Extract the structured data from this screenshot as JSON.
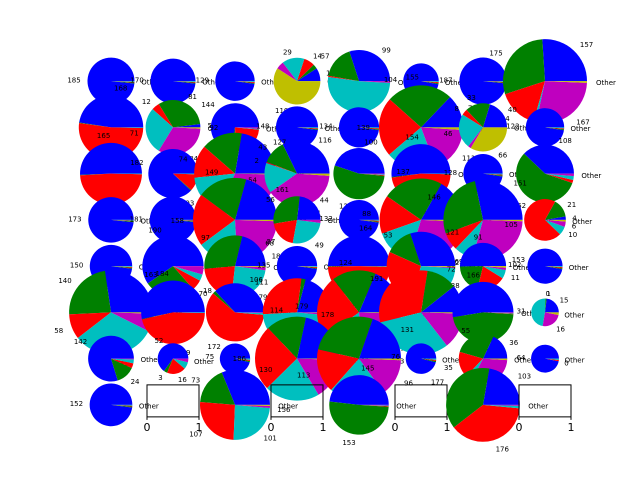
{
  "chart_data": {
    "type": "pie",
    "layout": {
      "rows": 8,
      "cols": 8
    },
    "colors": [
      "#0000ff",
      "#008000",
      "#ff0000",
      "#00bfbf",
      "#bf00bf",
      "#bfbf00"
    ],
    "empty_axis_ticks": [
      "0",
      "1"
    ],
    "panels": [
      {
        "row": 0,
        "col": 0,
        "labels": [
          "185",
          "",
          "",
          "Other"
        ],
        "values": [
          185,
          1,
          1,
          1
        ]
      },
      {
        "row": 0,
        "col": 1,
        "labels": [
          "170",
          "",
          "",
          "Other"
        ],
        "values": [
          170,
          1,
          1,
          1
        ]
      },
      {
        "row": 0,
        "col": 2,
        "labels": [
          "129",
          "",
          "",
          "Other"
        ],
        "values": [
          129,
          1,
          1,
          1
        ]
      },
      {
        "row": 0,
        "col": 3,
        "labels": [
          "17",
          "",
          "14",
          "29",
          "",
          "110",
          "Other"
        ],
        "values": [
          17,
          6,
          14,
          29,
          10,
          110,
          0
        ]
      },
      {
        "row": 0,
        "col": 4,
        "labels": [
          "99",
          "57",
          "",
          "169",
          "Other"
        ],
        "values": [
          99,
          57,
          2,
          169,
          3
        ]
      },
      {
        "row": 0,
        "col": 5,
        "labels": [
          "104",
          "",
          "",
          "Other"
        ],
        "values": [
          104,
          1,
          1,
          1
        ]
      },
      {
        "row": 0,
        "col": 6,
        "labels": [
          "187",
          "",
          "",
          "Other"
        ],
        "values": [
          187,
          1,
          1,
          1
        ]
      },
      {
        "row": 0,
        "col": 7,
        "labels": [
          "157",
          "175",
          "94",
          "",
          "167",
          "Other"
        ],
        "values": [
          157,
          175,
          94,
          6,
          167,
          4
        ]
      },
      {
        "row": 1,
        "col": 0,
        "labels": [
          "168",
          "",
          "183",
          "Other"
        ],
        "values": [
          168,
          1,
          183,
          1
        ]
      },
      {
        "row": 1,
        "col": 1,
        "labels": [
          "5",
          "81",
          "12",
          "71",
          "84",
          "Other"
        ],
        "values": [
          5,
          81,
          12,
          71,
          84,
          2
        ]
      },
      {
        "row": 1,
        "col": 2,
        "labels": [
          "144",
          "6",
          "45",
          "",
          "Other"
        ],
        "values": [
          144,
          6,
          45,
          1,
          2
        ]
      },
      {
        "row": 1,
        "col": 3,
        "labels": [
          "148",
          "",
          "",
          "Other"
        ],
        "values": [
          148,
          1,
          1,
          1
        ]
      },
      {
        "row": 1,
        "col": 4,
        "labels": [
          "134",
          "",
          "",
          "Other"
        ],
        "values": [
          134,
          1,
          1,
          1
        ]
      },
      {
        "row": 1,
        "col": 5,
        "labels": [
          "78",
          "155",
          "139",
          "118",
          "111",
          "Other"
        ],
        "values": [
          78,
          155,
          139,
          118,
          111,
          6
        ]
      },
      {
        "row": 1,
        "col": 6,
        "labels": [
          "40",
          "33",
          "8",
          "46",
          "",
          "66",
          "Other"
        ],
        "values": [
          40,
          33,
          8,
          46,
          4,
          66,
          0
        ]
      },
      {
        "row": 1,
        "col": 7,
        "labels": [
          "122",
          "",
          "",
          "Other"
        ],
        "values": [
          122,
          1,
          1,
          1
        ]
      },
      {
        "row": 2,
        "col": 0,
        "labels": [
          "165",
          "",
          "159",
          "Other"
        ],
        "values": [
          165,
          1,
          159,
          1
        ]
      },
      {
        "row": 2,
        "col": 1,
        "labels": [
          "182",
          "",
          "23",
          "Other"
        ],
        "values": [
          182,
          1,
          23,
          1
        ]
      },
      {
        "row": 2,
        "col": 2,
        "labels": [
          "127",
          "92",
          "74",
          "93",
          "180",
          "Other"
        ],
        "values": [
          127,
          92,
          74,
          93,
          180,
          2
        ]
      },
      {
        "row": 2,
        "col": 3,
        "labels": [
          "116",
          "43",
          "2",
          "54",
          "141",
          "Other"
        ],
        "values": [
          116,
          43,
          2,
          54,
          141,
          4
        ]
      },
      {
        "row": 2,
        "col": 4,
        "labels": [
          "100",
          "120",
          "",
          "",
          "Other"
        ],
        "values": [
          100,
          120,
          1,
          1,
          1
        ]
      },
      {
        "row": 2,
        "col": 5,
        "labels": [
          "154",
          "",
          "141",
          "Other"
        ],
        "values": [
          154,
          1,
          141,
          1
        ]
      },
      {
        "row": 2,
        "col": 6,
        "labels": [
          "128",
          "",
          "",
          "Other"
        ],
        "values": [
          128,
          1,
          1,
          1
        ]
      },
      {
        "row": 2,
        "col": 7,
        "labels": [
          "108",
          "162",
          "",
          "",
          "Other"
        ],
        "values": [
          108,
          162,
          5,
          6,
          4
        ]
      },
      {
        "row": 3,
        "col": 0,
        "labels": [
          "173",
          "",
          "",
          "Other"
        ],
        "values": [
          173,
          1,
          1,
          1
        ]
      },
      {
        "row": 3,
        "col": 1,
        "labels": [
          "181",
          "",
          "",
          "Other"
        ],
        "values": [
          181,
          1,
          1,
          1
        ]
      },
      {
        "row": 3,
        "col": 2,
        "labels": [
          "161",
          "149",
          "158",
          "123",
          "183",
          "Other"
        ],
        "values": [
          161,
          149,
          158,
          123,
          183,
          4
        ]
      },
      {
        "row": 3,
        "col": 3,
        "labels": [
          "44",
          "56",
          "37",
          "49",
          "",
          "Other"
        ],
        "values": [
          44,
          56,
          37,
          49,
          4,
          0
        ]
      },
      {
        "row": 3,
        "col": 4,
        "labels": [
          "132",
          "",
          "",
          "Other"
        ],
        "values": [
          132,
          1,
          1,
          1
        ]
      },
      {
        "row": 3,
        "col": 5,
        "labels": [
          "98",
          "137",
          "88",
          "87",
          "169",
          "Other"
        ],
        "values": [
          98,
          137,
          88,
          87,
          169,
          4
        ]
      },
      {
        "row": 3,
        "col": 6,
        "labels": [
          "151",
          "146",
          "39",
          "42",
          "153",
          "Other"
        ],
        "values": [
          151,
          146,
          39,
          42,
          153,
          3
        ]
      },
      {
        "row": 3,
        "col": 7,
        "labels": [
          "4",
          "21",
          "105",
          "10",
          "6",
          "Other"
        ],
        "values": [
          4,
          21,
          105,
          10,
          6,
          2
        ]
      },
      {
        "row": 4,
        "col": 0,
        "labels": [
          "150",
          "",
          "",
          "Other"
        ],
        "values": [
          150,
          1,
          1,
          1
        ]
      },
      {
        "row": 4,
        "col": 1,
        "labels": [
          "190",
          "86",
          "18",
          "11",
          "14",
          "Other"
        ],
        "values": [
          190,
          86,
          18,
          11,
          14,
          0
        ]
      },
      {
        "row": 4,
        "col": 2,
        "labels": [
          "68",
          "97",
          "70",
          "79",
          "",
          "Other"
        ],
        "values": [
          68,
          97,
          70,
          79,
          5,
          2
        ]
      },
      {
        "row": 4,
        "col": 3,
        "labels": [
          "135",
          "",
          "",
          "Other"
        ],
        "values": [
          135,
          1,
          1,
          1
        ]
      },
      {
        "row": 4,
        "col": 4,
        "labels": [
          "164",
          "",
          "162",
          "Other"
        ],
        "values": [
          164,
          1,
          162,
          1
        ]
      },
      {
        "row": 4,
        "col": 5,
        "labels": [
          "121",
          "53",
          "109",
          "115",
          "",
          "Other"
        ],
        "values": [
          121,
          53,
          109,
          115,
          2,
          2
        ]
      },
      {
        "row": 4,
        "col": 6,
        "labels": [
          "91",
          "38",
          "36",
          "11",
          "",
          "Other"
        ],
        "values": [
          91,
          38,
          36,
          11,
          3,
          2
        ]
      },
      {
        "row": 4,
        "col": 7,
        "labels": [
          "102",
          "",
          "",
          "Other"
        ],
        "values": [
          102,
          1,
          1,
          1
        ]
      },
      {
        "row": 5,
        "col": 0,
        "labels": [
          "163",
          "140",
          "58",
          "192",
          "41",
          "Other"
        ],
        "values": [
          163,
          140,
          58,
          192,
          41,
          3
        ]
      },
      {
        "row": 5,
        "col": 1,
        "labels": [
          "184",
          "",
          "159",
          "Other"
        ],
        "values": [
          184,
          1,
          159,
          1
        ]
      },
      {
        "row": 5,
        "col": 2,
        "labels": [
          "106",
          "",
          "172",
          "",
          "Other"
        ],
        "values": [
          106,
          5,
          172,
          3,
          1
        ]
      },
      {
        "row": 5,
        "col": 3,
        "labels": [
          "83",
          "",
          "111",
          "189",
          "",
          "Other"
        ],
        "values": [
          83,
          8,
          111,
          189,
          5,
          1
        ]
      },
      {
        "row": 5,
        "col": 4,
        "labels": [
          "136",
          "124",
          "179",
          "117",
          "171",
          "Other"
        ],
        "values": [
          136,
          124,
          179,
          117,
          171,
          4
        ]
      },
      {
        "row": 5,
        "col": 5,
        "labels": [
          "65",
          "72",
          "191",
          "193",
          "85",
          "Other"
        ],
        "values": [
          65,
          72,
          191,
          193,
          85,
          3
        ]
      },
      {
        "row": 5,
        "col": 6,
        "labels": [
          "166",
          "147",
          "",
          "",
          "Other"
        ],
        "values": [
          166,
          147,
          1,
          1,
          1
        ]
      },
      {
        "row": 5,
        "col": 7,
        "labels": [
          "15",
          "1",
          "0",
          "31",
          "16",
          "Other"
        ],
        "values": [
          15,
          1,
          0,
          31,
          16,
          2
        ]
      },
      {
        "row": 6,
        "col": 0,
        "labels": [
          "142",
          "24",
          "",
          "",
          "Other"
        ],
        "values": [
          142,
          24,
          6,
          5,
          1
        ]
      },
      {
        "row": 6,
        "col": 1,
        "labels": [
          "52",
          "3",
          "16",
          "",
          "Other"
        ],
        "values": [
          52,
          3,
          16,
          6,
          3
        ]
      },
      {
        "row": 6,
        "col": 2,
        "labels": [
          "75",
          "",
          "",
          "Other"
        ],
        "values": [
          75,
          1,
          1,
          1
        ]
      },
      {
        "row": 6,
        "col": 3,
        "labels": [
          "159",
          "114",
          "186",
          "156",
          "118",
          "Other"
        ],
        "values": [
          159,
          114,
          186,
          156,
          118,
          3
        ]
      },
      {
        "row": 6,
        "col": 4,
        "labels": [
          "131",
          "178",
          "113",
          "143",
          "96",
          "Other"
        ],
        "values": [
          131,
          178,
          113,
          143,
          96,
          4
        ]
      },
      {
        "row": 6,
        "col": 5,
        "labels": [
          "76",
          "",
          "",
          "Other"
        ],
        "values": [
          76,
          1,
          1,
          1
        ]
      },
      {
        "row": 6,
        "col": 6,
        "labels": [
          "36",
          "55",
          "35",
          "9",
          "63",
          "Other"
        ],
        "values": [
          36,
          55,
          35,
          9,
          63,
          2
        ]
      },
      {
        "row": 6,
        "col": 7,
        "labels": [
          "64",
          "0",
          "",
          "Other"
        ],
        "values": [
          64,
          0,
          1,
          1
        ]
      },
      {
        "row": 7,
        "col": 0,
        "labels": [
          "152",
          "",
          "",
          "Other"
        ],
        "values": [
          152,
          1,
          1,
          1
        ]
      },
      {
        "row": 7,
        "col": 1,
        "empty": true
      },
      {
        "row": 7,
        "col": 2,
        "labels": [
          "130",
          "73",
          "107",
          "101",
          "",
          "Other"
        ],
        "values": [
          130,
          73,
          107,
          101,
          4,
          2
        ]
      },
      {
        "row": 7,
        "col": 3,
        "empty": true
      },
      {
        "row": 7,
        "col": 4,
        "labels": [
          "145",
          "153",
          "",
          "",
          "Other"
        ],
        "values": [
          145,
          153,
          1,
          1,
          1
        ]
      },
      {
        "row": 7,
        "col": 5,
        "empty": true
      },
      {
        "row": 7,
        "col": 6,
        "labels": [
          "103",
          "177",
          "176",
          "",
          "Other"
        ],
        "values": [
          103,
          177,
          176,
          5,
          2
        ]
      },
      {
        "row": 7,
        "col": 7,
        "empty": true
      }
    ]
  }
}
